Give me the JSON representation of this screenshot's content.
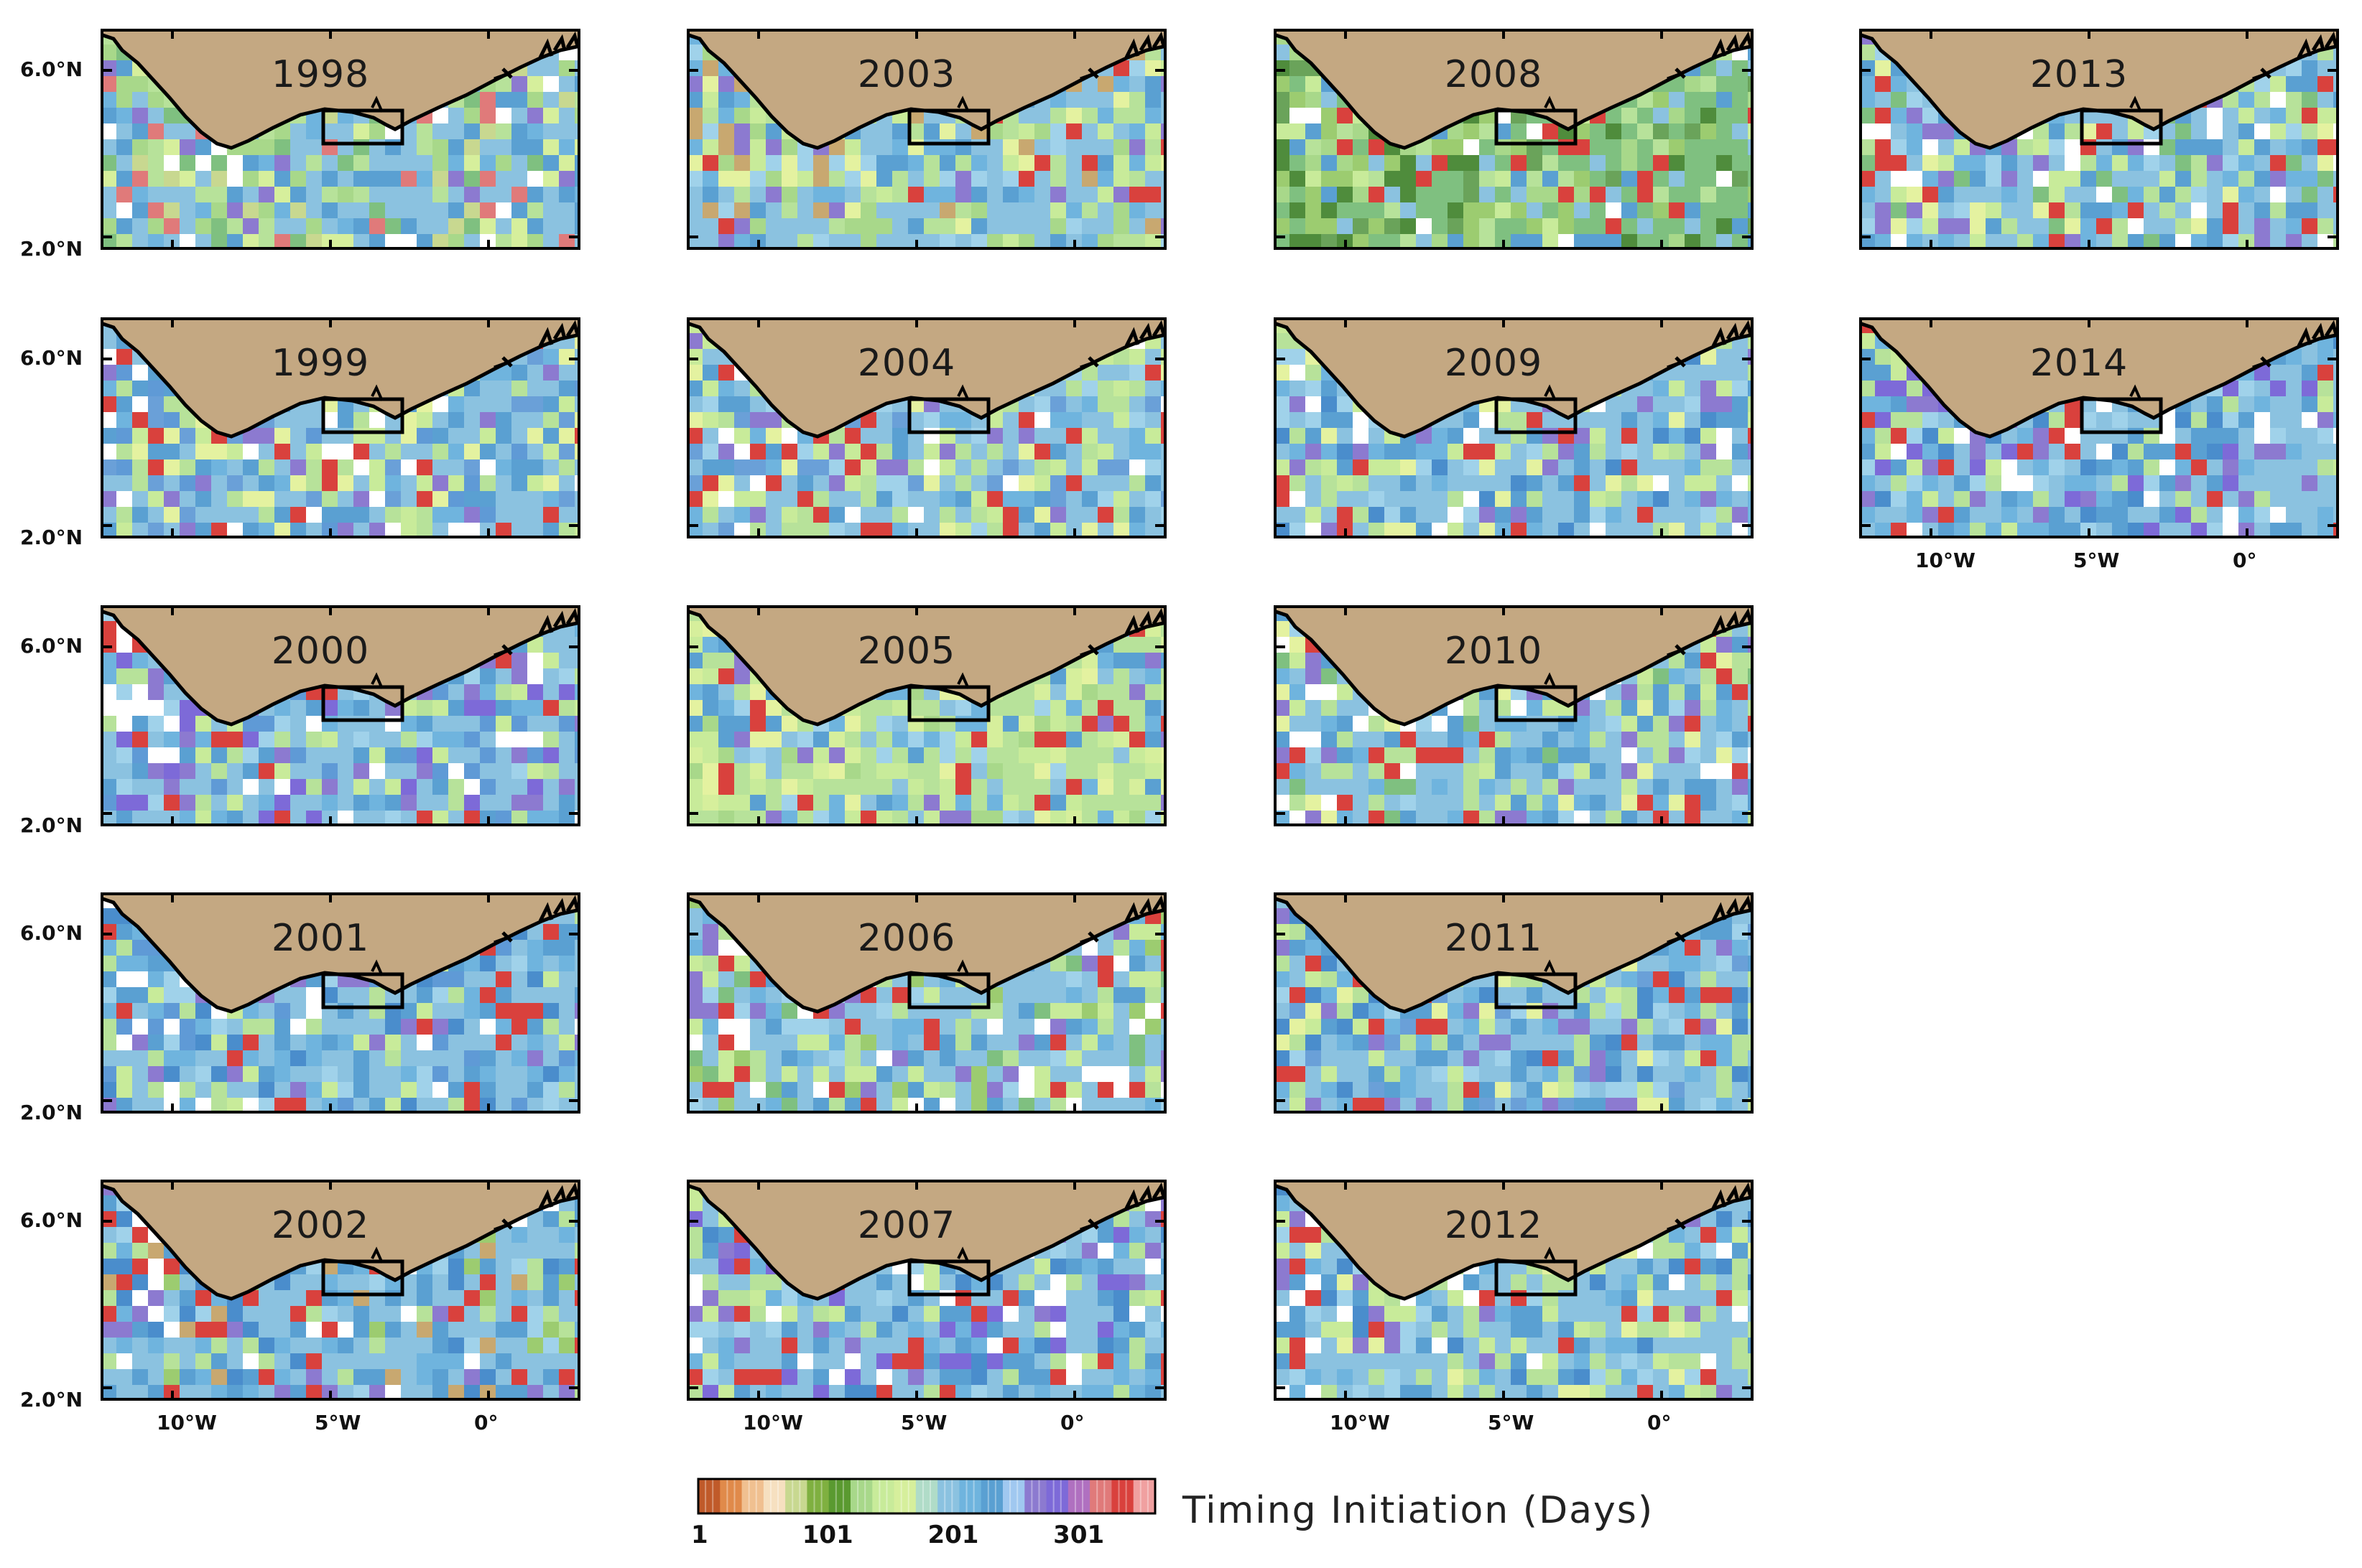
{
  "figure": {
    "panels": [
      {
        "year": "1998",
        "palette": [
          "#8bc2e0",
          "#5aa0d2",
          "#b7e29a",
          "#a8d88a",
          "#6fb4de",
          "#d6ef9c",
          "#7fc080",
          "#c8d890",
          "#e07a7a",
          "#ffffff",
          "#8c7ad0"
        ]
      },
      {
        "year": "1999",
        "palette": [
          "#8bc2e0",
          "#5aa0d2",
          "#c8eb9a",
          "#b7e29a",
          "#6fb4de",
          "#d9413d",
          "#8c7ad0",
          "#e4f2a0",
          "#6aa0d8",
          "#ffffff",
          "#5f9ad6"
        ]
      },
      {
        "year": "2000",
        "palette": [
          "#8bc2e0",
          "#5aa0d2",
          "#b7e29a",
          "#c8eb9a",
          "#6fb4de",
          "#8c7ad0",
          "#7d6ad8",
          "#d9413d",
          "#ffffff",
          "#a0d2ea",
          "#5f9ad6"
        ]
      },
      {
        "year": "2001",
        "palette": [
          "#8bc2e0",
          "#5aa0d2",
          "#6fb4de",
          "#b7e29a",
          "#4a8dcc",
          "#8c7ad0",
          "#d9413d",
          "#ffffff",
          "#a0d2ea",
          "#c8eb9a",
          "#5f9ad6"
        ]
      },
      {
        "year": "2002",
        "palette": [
          "#8bc2e0",
          "#5aa0d2",
          "#6fb4de",
          "#b7e29a",
          "#4a8dcc",
          "#d9413d",
          "#8c7ad0",
          "#9ccc70",
          "#c8a870",
          "#ffffff",
          "#a0d2ea"
        ]
      },
      {
        "year": "2003",
        "palette": [
          "#8bc2e0",
          "#b7e29a",
          "#c8eb9a",
          "#5aa0d2",
          "#6fb4de",
          "#d9413d",
          "#a8d88a",
          "#e4f2a0",
          "#c8a870",
          "#a0d2ea",
          "#8c7ad0"
        ]
      },
      {
        "year": "2004",
        "palette": [
          "#8bc2e0",
          "#b7e29a",
          "#c8eb9a",
          "#5aa0d2",
          "#6fb4de",
          "#d9413d",
          "#8c7ad0",
          "#ffffff",
          "#e4f2a0",
          "#a0d2ea",
          "#6aa0d8"
        ]
      },
      {
        "year": "2005",
        "palette": [
          "#b7e29a",
          "#c8eb9a",
          "#8bc2e0",
          "#d6ef9c",
          "#6fb4de",
          "#d9413d",
          "#5aa0d2",
          "#8c7ad0",
          "#e4f2a0",
          "#a8d88a",
          "#a0d2ea"
        ]
      },
      {
        "year": "2006",
        "palette": [
          "#8bc2e0",
          "#b7e29a",
          "#5aa0d2",
          "#c8eb9a",
          "#6fb4de",
          "#d9413d",
          "#ffffff",
          "#8c7ad0",
          "#7fc080",
          "#9ccc70",
          "#a0d2ea"
        ]
      },
      {
        "year": "2007",
        "palette": [
          "#8bc2e0",
          "#5aa0d2",
          "#6fb4de",
          "#b7e29a",
          "#4a8dcc",
          "#d9413d",
          "#8c7ad0",
          "#ffffff",
          "#c8eb9a",
          "#a0d2ea",
          "#7d6ad8"
        ]
      },
      {
        "year": "2008",
        "palette": [
          "#7fc080",
          "#9ccc70",
          "#b7e29a",
          "#6aa35a",
          "#5aa0d2",
          "#8bc2e0",
          "#a8d88a",
          "#c8eb9a",
          "#4f8c3c",
          "#ffffff",
          "#d9413d"
        ]
      },
      {
        "year": "2009",
        "palette": [
          "#8bc2e0",
          "#5aa0d2",
          "#b7e29a",
          "#6fb4de",
          "#c8eb9a",
          "#d9413d",
          "#8c7ad0",
          "#a0d2ea",
          "#ffffff",
          "#4a8dcc",
          "#e4f2a0"
        ]
      },
      {
        "year": "2010",
        "palette": [
          "#8bc2e0",
          "#b7e29a",
          "#5aa0d2",
          "#6fb4de",
          "#c8eb9a",
          "#d9413d",
          "#ffffff",
          "#8c7ad0",
          "#7fc080",
          "#a0d2ea",
          "#e4f2a0"
        ]
      },
      {
        "year": "2011",
        "palette": [
          "#8bc2e0",
          "#5aa0d2",
          "#6fb4de",
          "#b7e29a",
          "#4a8dcc",
          "#c8eb9a",
          "#a0d2ea",
          "#8c7ad0",
          "#d9413d",
          "#6aa0d8",
          "#e4f2a0"
        ]
      },
      {
        "year": "2012",
        "palette": [
          "#8bc2e0",
          "#b7e29a",
          "#5aa0d2",
          "#c8eb9a",
          "#6fb4de",
          "#a0d2ea",
          "#8c7ad0",
          "#ffffff",
          "#d9413d",
          "#e4f2a0",
          "#4a8dcc"
        ]
      },
      {
        "year": "2013",
        "palette": [
          "#8bc2e0",
          "#b7e29a",
          "#5aa0d2",
          "#6fb4de",
          "#c8eb9a",
          "#d9413d",
          "#ffffff",
          "#a0d2ea",
          "#8c7ad0",
          "#7fc080",
          "#e4f2a0"
        ]
      },
      {
        "year": "2014",
        "palette": [
          "#8bc2e0",
          "#5aa0d2",
          "#6fb4de",
          "#b7e29a",
          "#8c7ad0",
          "#ffffff",
          "#d9413d",
          "#a0d2ea",
          "#4a8dcc",
          "#c8eb9a",
          "#7d6ad8"
        ]
      }
    ],
    "lat_labels": [
      "6.0°N",
      "2.0°N"
    ],
    "lon_labels": [
      "10°W",
      "5°W",
      "0°"
    ],
    "land_color": "#c4a882",
    "colorbar": {
      "title": "Timing Initiation (Days)",
      "tick_labels": [
        "1",
        "101",
        "201",
        "301"
      ],
      "tick_values": [
        1,
        101,
        201,
        301
      ],
      "range": [
        1,
        365
      ],
      "colors": [
        "#c05a2a",
        "#e08a4a",
        "#f0c090",
        "#f6e0c0",
        "#c8d890",
        "#7fb040",
        "#5a9a30",
        "#a8d88a",
        "#c8eb9a",
        "#d6ef9c",
        "#b0dcc8",
        "#8bc2e0",
        "#6fb4de",
        "#5aa0d2",
        "#a0c8f0",
        "#8c7ad0",
        "#7d6ad8",
        "#b070c0",
        "#e07a7a",
        "#d9413d",
        "#f0a0a0"
      ]
    }
  }
}
